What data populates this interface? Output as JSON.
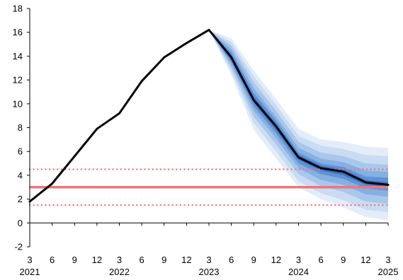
{
  "chart_data": {
    "type": "line",
    "title": "",
    "xlabel": "",
    "ylabel": "",
    "ylim": [
      -2,
      18
    ],
    "yticks": [
      -2,
      0,
      2,
      4,
      6,
      8,
      10,
      12,
      14,
      16,
      18
    ],
    "x_month_labels": [
      "3",
      "6",
      "9",
      "12",
      "3",
      "6",
      "9",
      "12",
      "3",
      "6",
      "9",
      "12",
      "3",
      "6",
      "9",
      "12",
      "3"
    ],
    "x_year_labels": [
      {
        "label": "2021",
        "index": 0
      },
      {
        "label": "2022",
        "index": 4
      },
      {
        "label": "2023",
        "index": 8
      },
      {
        "label": "2024",
        "index": 12
      },
      {
        "label": "2025",
        "index": 16
      }
    ],
    "series": [
      {
        "role": "actual-and-forecast",
        "color": "#000000",
        "values": [
          1.8,
          3.3,
          5.6,
          7.9,
          9.2,
          11.9,
          13.9,
          15.1,
          16.2,
          13.9,
          10.3,
          8.1,
          5.5,
          4.6,
          4.3,
          3.4,
          3.2
        ]
      }
    ],
    "fan": {
      "start_index": 8,
      "colors": [
        "#e3edf9",
        "#c9dcf2",
        "#a9c7eb",
        "#86b0e2",
        "#5f93d6",
        "#3a75c4"
      ],
      "upper": [
        [
          16.2,
          15.5,
          12.8,
          10.4,
          7.9,
          7.0,
          6.8,
          6.4,
          6.3
        ],
        [
          16.2,
          15.2,
          12.3,
          9.9,
          7.3,
          6.5,
          6.2,
          5.7,
          5.6
        ],
        [
          16.2,
          14.9,
          11.8,
          9.4,
          6.8,
          5.9,
          5.6,
          5.0,
          4.9
        ],
        [
          16.2,
          14.6,
          11.3,
          8.9,
          6.3,
          5.4,
          5.1,
          4.4,
          4.3
        ],
        [
          16.2,
          14.3,
          10.9,
          8.6,
          5.9,
          5.0,
          4.7,
          3.9,
          3.8
        ],
        [
          16.2,
          14.1,
          10.6,
          8.3,
          5.7,
          4.8,
          4.5,
          3.6,
          3.4
        ]
      ],
      "lower": [
        [
          16.2,
          12.4,
          7.8,
          5.4,
          3.0,
          2.0,
          1.3,
          0.5,
          0.2
        ],
        [
          16.2,
          12.7,
          8.4,
          6.0,
          3.5,
          2.5,
          1.9,
          1.1,
          0.9
        ],
        [
          16.2,
          13.0,
          8.9,
          6.6,
          4.1,
          3.1,
          2.6,
          1.8,
          1.6
        ],
        [
          16.2,
          13.3,
          9.4,
          7.1,
          4.6,
          3.6,
          3.2,
          2.4,
          2.2
        ],
        [
          16.2,
          13.5,
          9.8,
          7.5,
          5.0,
          4.1,
          3.7,
          2.9,
          2.7
        ],
        [
          16.2,
          13.7,
          10.1,
          7.8,
          5.3,
          4.4,
          4.0,
          3.2,
          3.0
        ]
      ]
    },
    "reference_lines": [
      {
        "value": 3.0,
        "style": "solid",
        "color": "#f4737a"
      },
      {
        "value": 4.5,
        "style": "dotted",
        "color": "#f4737a"
      },
      {
        "value": 1.5,
        "style": "dotted",
        "color": "#f4737a"
      }
    ],
    "grid": false,
    "legend": "none"
  }
}
